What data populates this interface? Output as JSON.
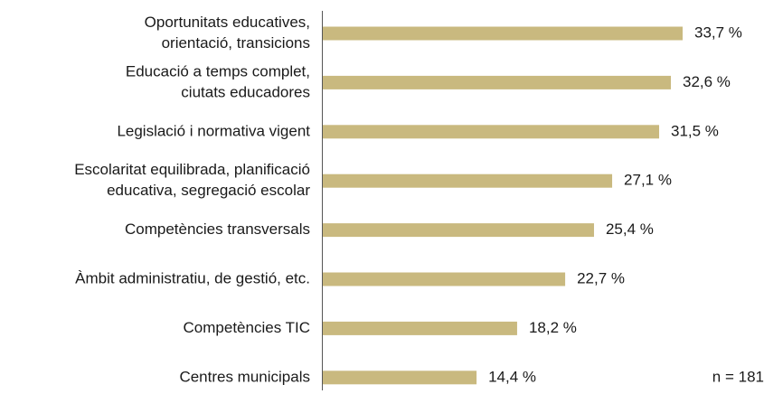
{
  "chart_data": {
    "type": "barh",
    "categories": [
      [
        "Oportunitats educatives,",
        "orientació, transicions"
      ],
      [
        "Educació a temps complet,",
        "ciutats educadores"
      ],
      [
        "Legislació i normativa vigent"
      ],
      [
        "Escolaritat equilibrada, planificació",
        "educativa, segregació escolar"
      ],
      [
        "Competències transversals"
      ],
      [
        "Àmbit administratiu, de gestió, etc."
      ],
      [
        "Competències TIC"
      ],
      [
        "Centres municipals"
      ]
    ],
    "values": [
      33.7,
      32.6,
      31.5,
      27.1,
      25.4,
      22.7,
      18.2,
      14.4
    ],
    "value_labels": [
      "33,7 %",
      "32,6 %",
      "31,5 %",
      "27,1 %",
      "25,4 %",
      "22,7 %",
      "18,2 %",
      "14,4 %"
    ],
    "color": "#c9b97f",
    "annotation": "n = 181"
  }
}
